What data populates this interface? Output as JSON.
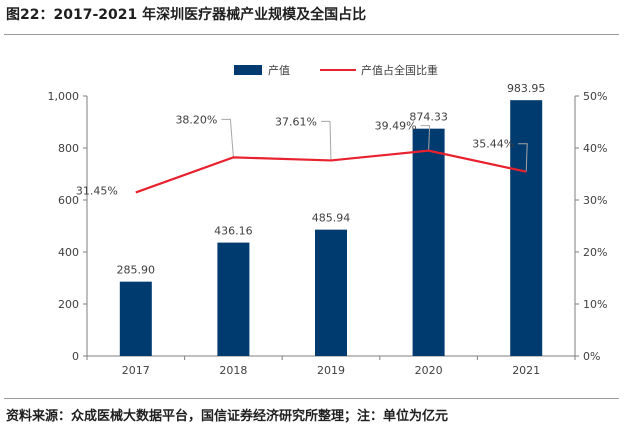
{
  "title": "图22：2017-2021 年深圳医疗器械产业规模及全国占比",
  "source": "资料来源：众成医械大数据平台，国信证券经济研究所整理；注：单位为亿元",
  "colors": {
    "bar": "#003B6F",
    "line": "#E8212E",
    "axis": "#7f7f7f",
    "text": "#404040"
  },
  "chart_data": {
    "type": "bar+line",
    "categories": [
      "2017",
      "2018",
      "2019",
      "2020",
      "2021"
    ],
    "series": [
      {
        "name": "产值",
        "type": "bar",
        "axis": "left",
        "values": [
          285.9,
          436.16,
          485.94,
          874.33,
          983.95
        ],
        "labels": [
          "285.90",
          "436.16",
          "485.94",
          "874.33",
          "983.95"
        ]
      },
      {
        "name": "产值占全国比重",
        "type": "line",
        "axis": "right",
        "values": [
          31.45,
          38.2,
          37.61,
          39.49,
          35.44
        ],
        "labels": [
          "31.45%",
          "38.20%",
          "37.61%",
          "39.49%",
          "35.44%"
        ]
      }
    ],
    "y_left": {
      "min": 0,
      "max": 1000,
      "ticks": [
        "0",
        "200",
        "400",
        "600",
        "800",
        "1,000"
      ]
    },
    "y_right": {
      "min": 0,
      "max": 50,
      "ticks": [
        "0%",
        "10%",
        "20%",
        "30%",
        "40%",
        "50%"
      ]
    },
    "legend_position": "top-center",
    "grid": false
  }
}
